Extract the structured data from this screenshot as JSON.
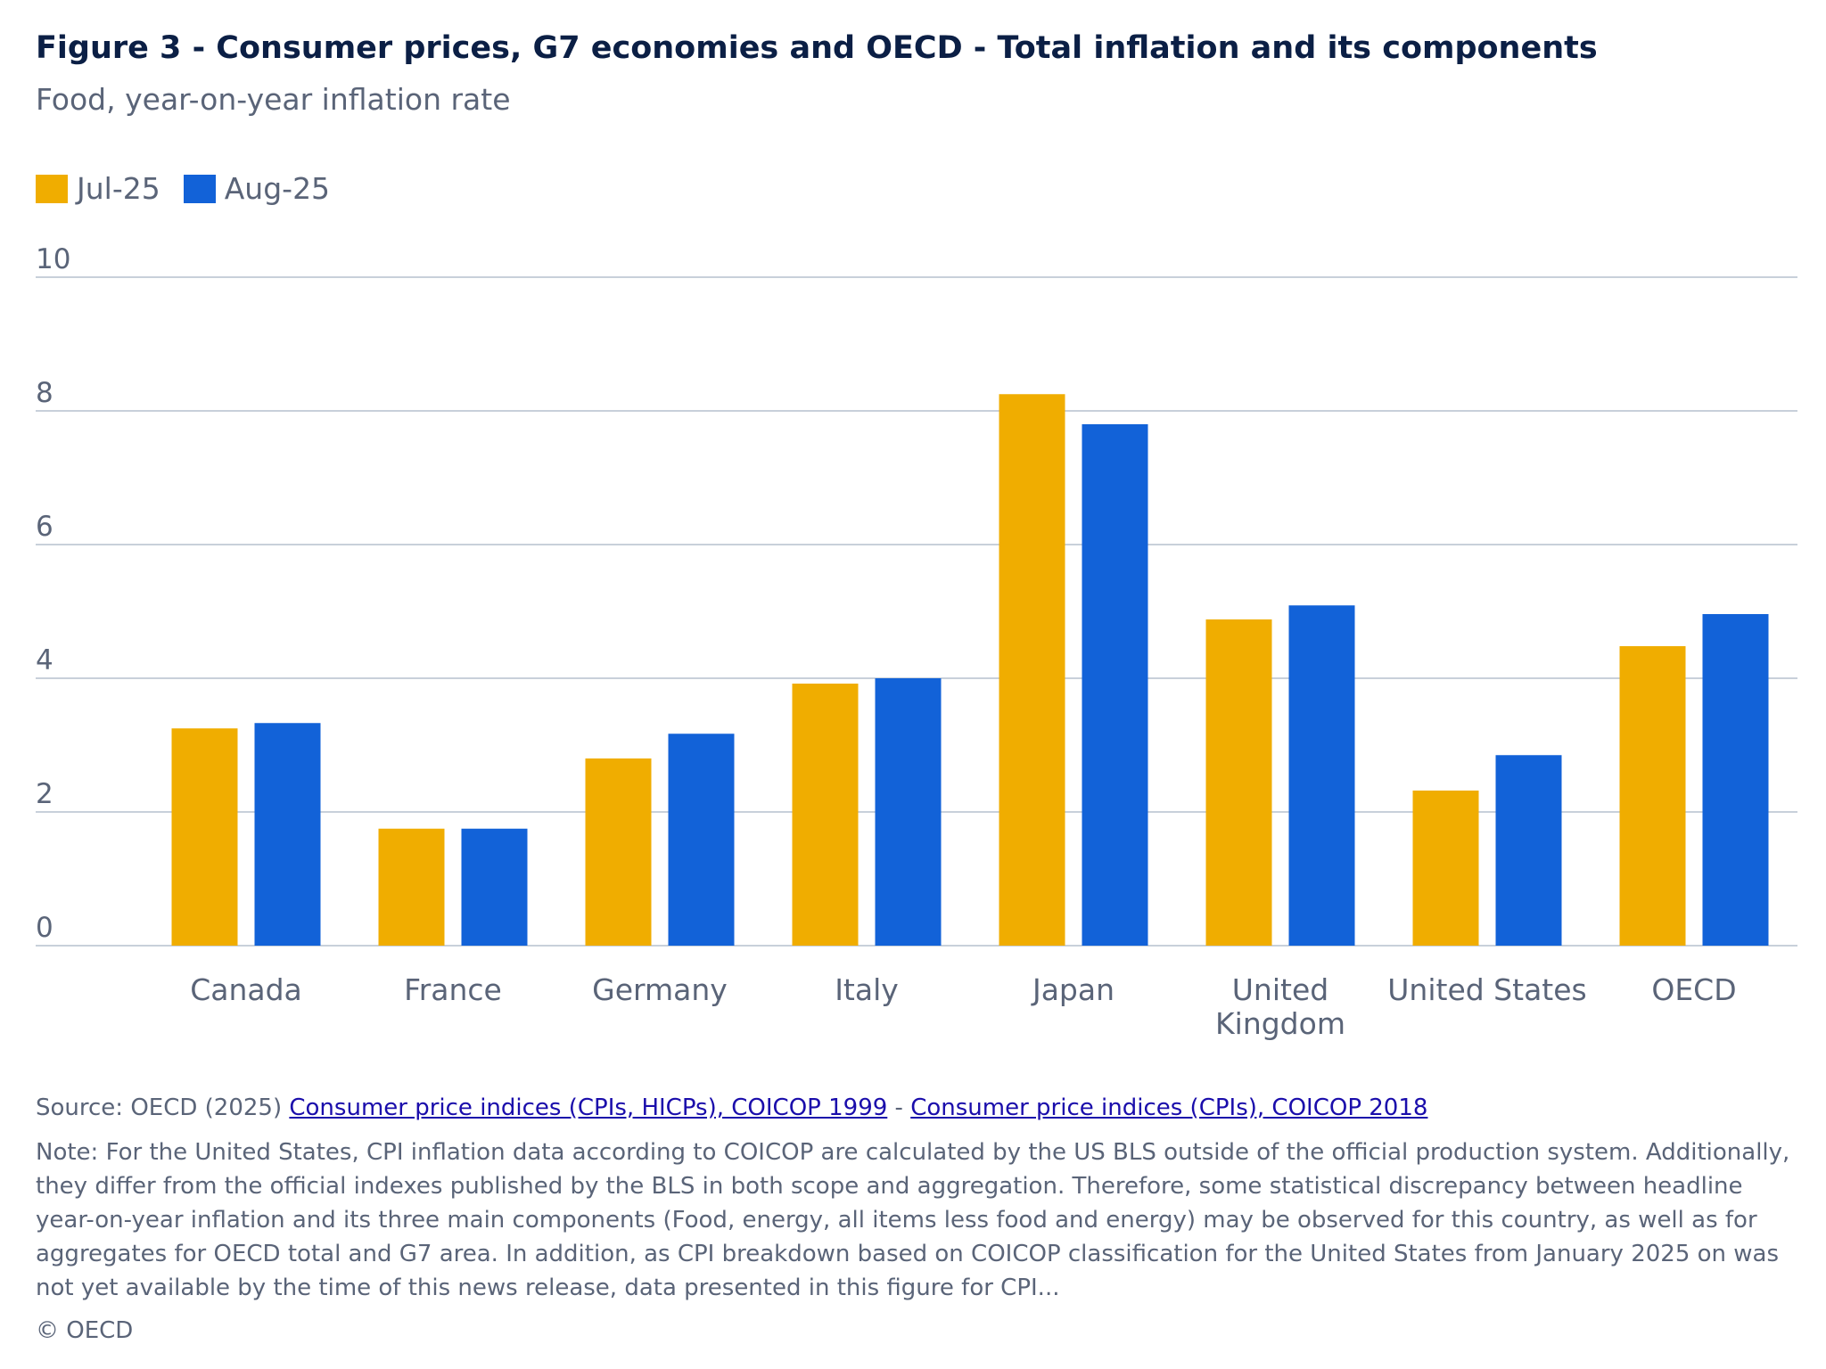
{
  "header": {
    "title": "Figure 3 - Consumer prices, G7 economies and OECD - Total inflation and its components",
    "subtitle": "Food, year-on-year inflation rate"
  },
  "colors": {
    "series_1": "#f0ad00",
    "series_2": "#1262d8",
    "grid": "#c8d0da"
  },
  "chart_data": {
    "type": "bar",
    "title": "Figure 3 - Consumer prices, G7 economies and OECD - Total inflation and its components",
    "subtitle": "Food, year-on-year inflation rate",
    "categories": [
      "Canada",
      "France",
      "Germany",
      "Italy",
      "Japan",
      "United Kingdom",
      "United States",
      "OECD"
    ],
    "category_labels": [
      [
        "Canada"
      ],
      [
        "France"
      ],
      [
        "Germany"
      ],
      [
        "Italy"
      ],
      [
        "Japan"
      ],
      [
        "United",
        "Kingdom"
      ],
      [
        "United States"
      ],
      [
        "OECD"
      ]
    ],
    "series": [
      {
        "name": "Jul-25",
        "values": [
          3.25,
          1.75,
          2.8,
          3.92,
          8.25,
          4.88,
          2.32,
          4.48
        ]
      },
      {
        "name": "Aug-25",
        "values": [
          3.33,
          1.75,
          3.17,
          4.0,
          7.8,
          5.09,
          2.85,
          4.96
        ]
      }
    ],
    "yticks": [
      0,
      2,
      4,
      6,
      8,
      10
    ],
    "ylim": [
      0,
      10
    ],
    "xlabel": "",
    "ylabel": "",
    "grid": true,
    "legend_position": "top-left"
  },
  "footer": {
    "source_prefix": "Source: OECD (2025) ",
    "source_link_1": "Consumer price indices (CPIs, HICPs), COICOP 1999",
    "source_sep": " - ",
    "source_link_2": "Consumer price indices (CPIs), COICOP 2018",
    "note": "Note: For the United States, CPI inflation data according to COICOP are calculated by the US BLS outside of the official production system. Additionally, they differ from the official indexes published by the BLS in both scope and aggregation. Therefore, some statistical discrepancy between headline year-on-year inflation and its three main components (Food, energy, all items less food and energy) may be observed for this country, as well as for aggregates for OECD total and G7 area. In addition, as CPI breakdown based on COICOP classification for the United States from January 2025 on was not yet available by the time of this news release, data presented in this figure for CPI...",
    "copyright": "© OECD"
  }
}
